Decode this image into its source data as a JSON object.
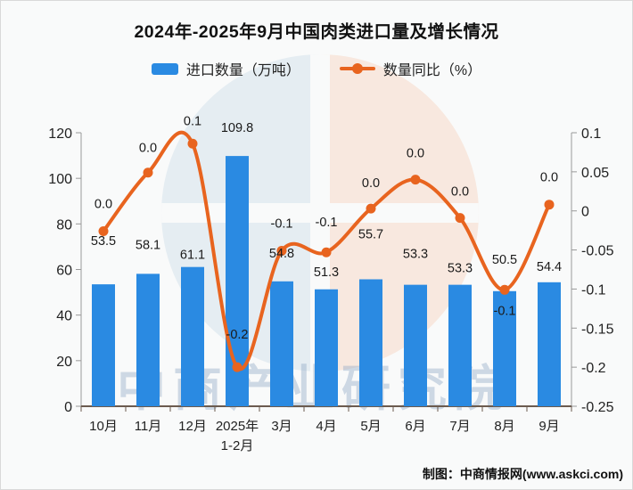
{
  "title": "2024年-2025年9月中国肉类进口量及增长情况",
  "legend": {
    "items": [
      {
        "label": "进口数量（万吨）",
        "marker": "bar-swatch",
        "color": "#2a8ae2"
      },
      {
        "label": "数量同比（%）",
        "marker": "line-marker",
        "color": "#e8641f"
      }
    ]
  },
  "watermark": {
    "text": "中商产业研究院"
  },
  "footer": {
    "credit": "制图：中商情报网(www.askci.com)"
  },
  "colors": {
    "bar": "#2a8ae2",
    "line": "#e8641f",
    "axis": "#999999",
    "x_axis": "#6b5b4f",
    "text": "#222222"
  },
  "chart_data": {
    "type": "bar",
    "subtype": "combo-bar-line-dual-axis",
    "title": "2024年-2025年9月中国肉类进口量及增长情况",
    "categories": [
      "10月",
      "11月",
      "12月",
      "2025年\n1-2月",
      "3月",
      "4月",
      "5月",
      "6月",
      "7月",
      "8月",
      "9月"
    ],
    "series": [
      {
        "name": "进口数量（万吨）",
        "type": "bar",
        "axis": "left",
        "color": "#2a8ae2",
        "values": [
          53.5,
          58.1,
          61.1,
          109.8,
          54.8,
          51.3,
          55.7,
          53.3,
          53.3,
          50.5,
          54.4
        ]
      },
      {
        "name": "数量同比（%）",
        "type": "line",
        "axis": "right",
        "color": "#e8641f",
        "labels": [
          "0.0",
          "0.0",
          "0.1",
          "-0.2",
          "-0.1",
          "-0.1",
          "0.0",
          "0.0",
          "0.0",
          "-0.1",
          "0.0"
        ],
        "values_plotted": [
          -0.026,
          0.049,
          0.086,
          -0.2,
          -0.051,
          -0.053,
          0.003,
          0.04,
          -0.009,
          -0.101,
          0.008
        ]
      }
    ],
    "left_axis": {
      "min": 0,
      "max": 120,
      "ticks": [
        0,
        20,
        40,
        60,
        80,
        100,
        120
      ]
    },
    "right_axis": {
      "min": -0.25,
      "max": 0.1,
      "ticks": [
        0.1,
        0.05,
        0,
        -0.05,
        -0.1,
        -0.15,
        -0.2,
        -0.25
      ]
    },
    "grid": false,
    "legend_position": "top"
  }
}
